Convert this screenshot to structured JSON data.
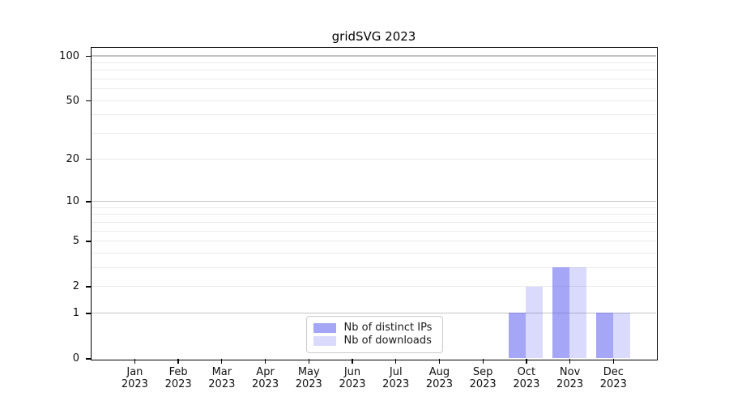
{
  "chart_data": {
    "type": "bar",
    "title": "gridSVG 2023",
    "categories": [
      "Jan",
      "Feb",
      "Mar",
      "Apr",
      "May",
      "Jun",
      "Jul",
      "Aug",
      "Sep",
      "Oct",
      "Nov",
      "Dec"
    ],
    "year_label": "2023",
    "series": [
      {
        "name": "Nb of distinct IPs",
        "color": "#5555F085",
        "values": [
          0,
          0,
          0,
          0,
          0,
          0,
          0,
          0,
          0,
          1,
          3,
          1
        ]
      },
      {
        "name": "Nb of downloads",
        "color": "#5555F038",
        "values": [
          0,
          0,
          0,
          0,
          0,
          0,
          0,
          0,
          0,
          2,
          3,
          1
        ]
      }
    ],
    "xlabel": "",
    "ylabel": "",
    "yscale": "log1p",
    "ylim": [
      0,
      113
    ],
    "y_tick_labels": [
      0,
      1,
      2,
      5,
      10,
      20,
      50,
      100
    ],
    "y_major_gridlines": [
      1,
      10,
      100
    ],
    "y_minor_gridlines": [
      2,
      3,
      4,
      5,
      6,
      7,
      8,
      9,
      20,
      30,
      40,
      50,
      60,
      70,
      80,
      90
    ],
    "grid": "on",
    "legend_position": "lower center inside",
    "colors": {
      "grid_major": "#c3c3c3",
      "grid_minor": "#ebebeb",
      "spine": "#000000",
      "text": "#111111",
      "legend_border": "#cccccc",
      "background": "#ffffff"
    }
  }
}
